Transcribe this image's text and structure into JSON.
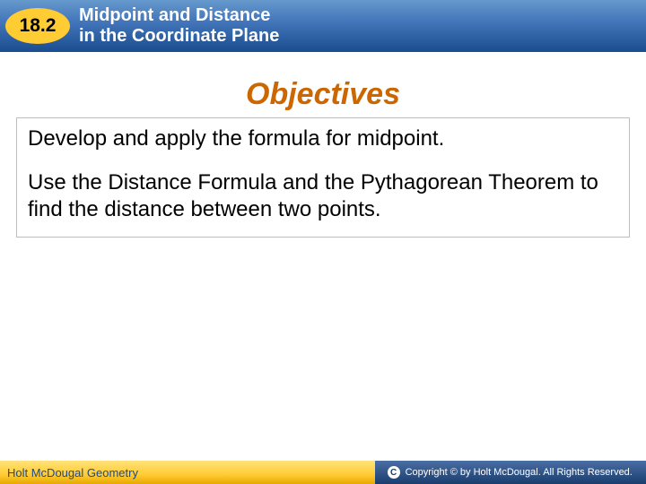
{
  "header": {
    "section_number": "18.2",
    "title_line1": "Midpoint and Distance",
    "title_line2": "in the Coordinate Plane"
  },
  "objectives": {
    "heading": "Objectives",
    "items": [
      "Develop and apply the formula for midpoint.",
      "Use the Distance Formula and the Pythagorean Theorem to find the distance between two points."
    ]
  },
  "footer": {
    "left_text": "Holt McDougal Geometry",
    "copyright_symbol": "C",
    "copyright_text": "Copyright © by Holt McDougal. All Rights Reserved."
  },
  "colors": {
    "header_gradient_top": "#6699cc",
    "header_gradient_bottom": "#1a4d8f",
    "badge_bg": "#ffcc33",
    "objectives_heading": "#cc6600",
    "box_border": "#bdbdbd",
    "footer_left_bg": "#ffcc33",
    "footer_right_bg": "#1a3d6d",
    "footer_left_text": "#204a87"
  }
}
